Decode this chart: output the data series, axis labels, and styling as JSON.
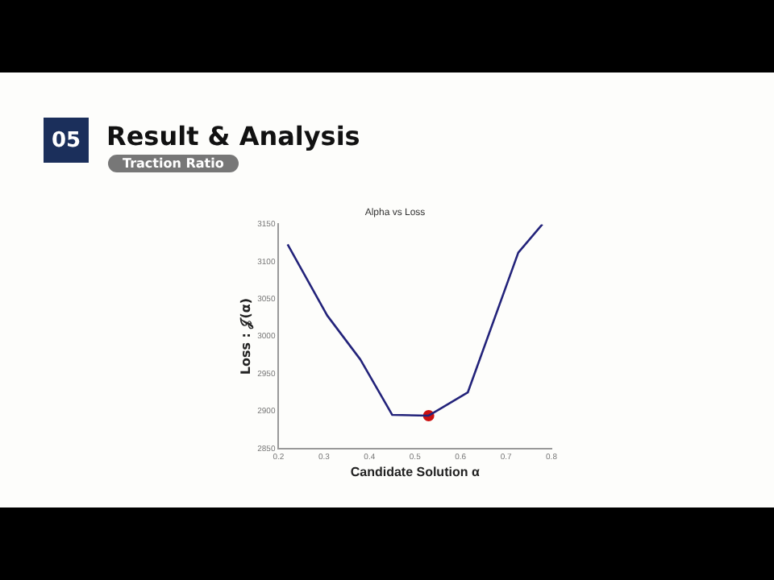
{
  "chart_data": {
    "type": "line",
    "title": "Alpha vs Loss",
    "xlabel": "Candidate Solution α",
    "ylabel": "Loss : 𝒥(α)",
    "annotations": [
      "05",
      "Result & Analysis",
      "Traction Ratio"
    ],
    "series": [
      {
        "color": "#23237a",
        "x": [
          0.22,
          0.307,
          0.38,
          0.45,
          0.53,
          0.616,
          0.727,
          0.78
        ],
        "values": [
          3123,
          3028,
          2969,
          2895,
          2894,
          2925,
          3112,
          3150
        ],
        "marker": "none"
      },
      {
        "type": "scatter",
        "color": "#cc1111",
        "marker": "circle",
        "x": [
          0.53
        ],
        "values": [
          2894
        ]
      }
    ],
    "xlim": [
      0.2,
      0.8
    ],
    "xticks": [
      0.2,
      0.3,
      0.4,
      0.5,
      0.6,
      0.7,
      0.8
    ],
    "ylim": [
      2850,
      3150
    ],
    "yticks": [
      2850,
      2900,
      2950,
      3000,
      3050,
      3100,
      3150
    ],
    "grid": false,
    "legend": false,
    "line_style": "solid"
  }
}
